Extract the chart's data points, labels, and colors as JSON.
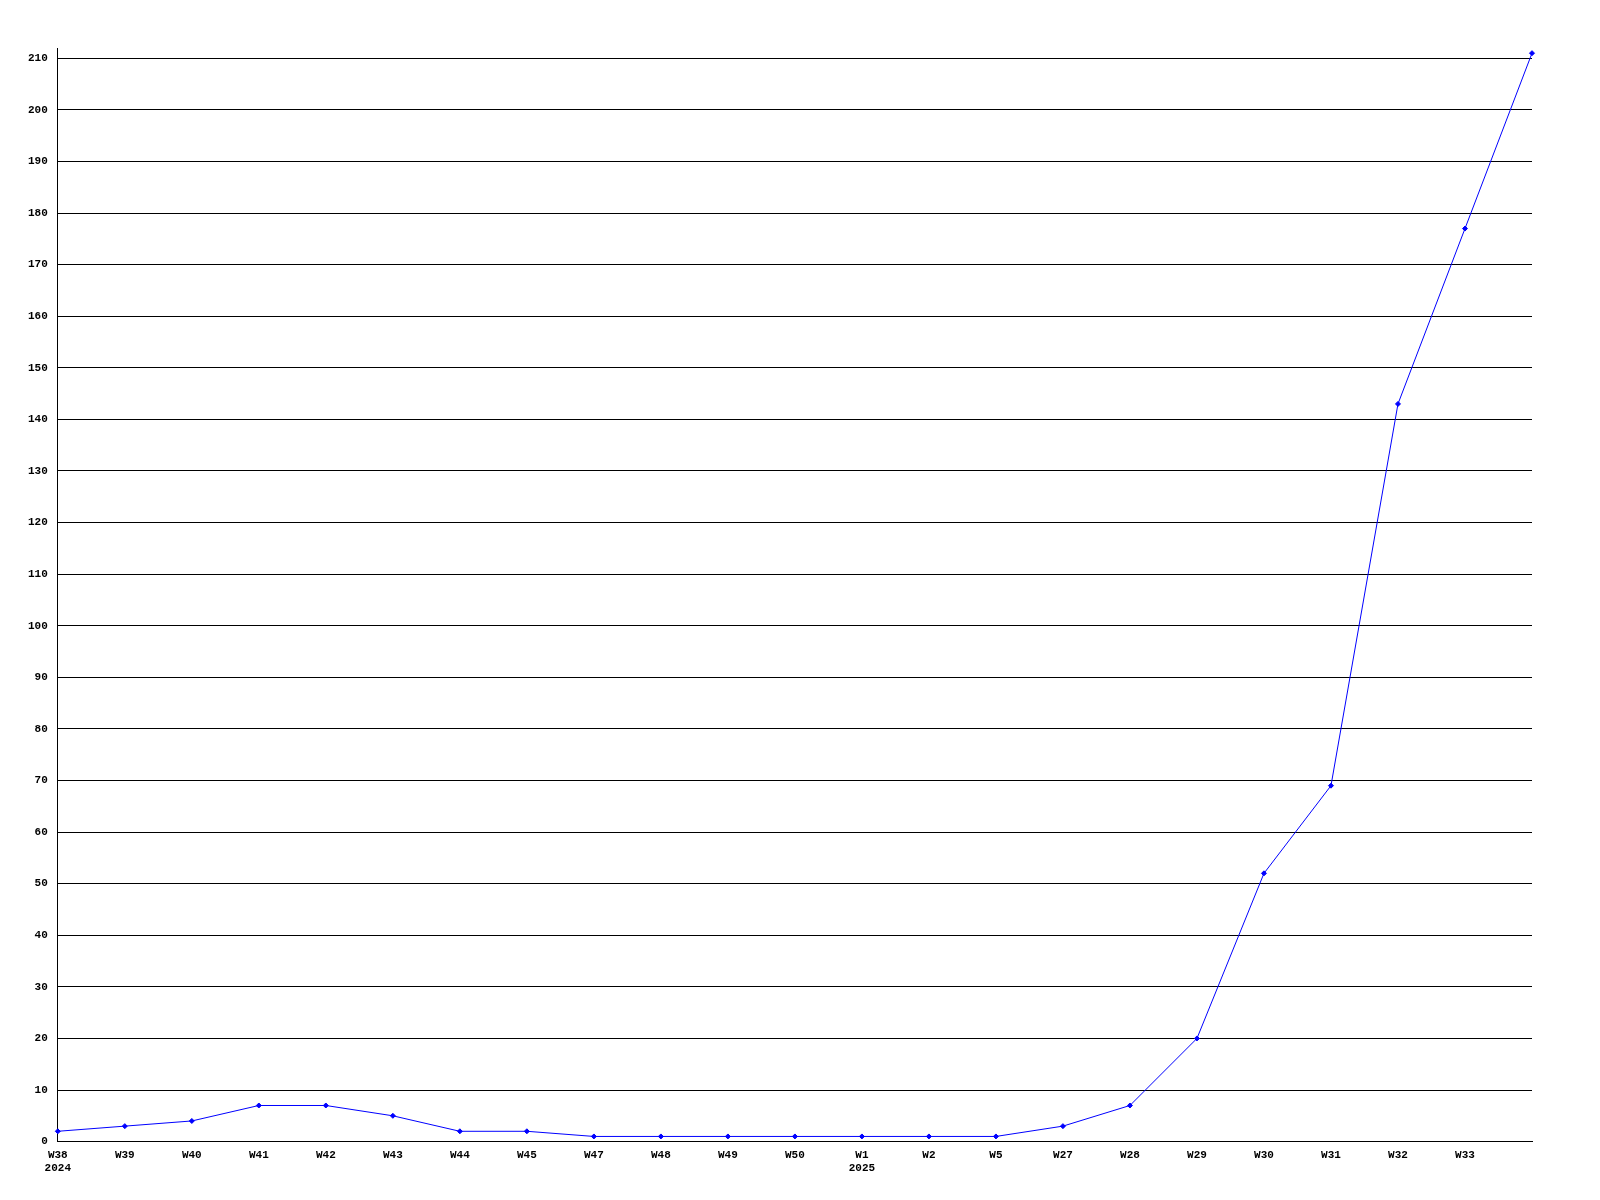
{
  "chart_data": {
    "type": "line",
    "categories": [
      "W38\n2024",
      "W39",
      "W40",
      "W41",
      "W42",
      "W43",
      "W44",
      "W45",
      "W47",
      "W48",
      "W49",
      "W50",
      "W1\n2025",
      "W2",
      "W5",
      "W27",
      "W28",
      "W29",
      "W30",
      "W31",
      "W32",
      "W33",
      null
    ],
    "series": [
      {
        "color": "#0000ff",
        "values": [
          2,
          3,
          4,
          7,
          7,
          5,
          2,
          2,
          1,
          1,
          1,
          1,
          1,
          1,
          1,
          3,
          7,
          20,
          52,
          69,
          143,
          177,
          211
        ]
      }
    ],
    "ylim": [
      0,
      212
    ],
    "yticks": [
      0,
      10,
      20,
      30,
      40,
      50,
      60,
      70,
      80,
      90,
      100,
      110,
      120,
      130,
      140,
      150,
      160,
      170,
      180,
      190,
      200,
      210
    ],
    "grid": "y",
    "legend": false,
    "marker": "diamond",
    "line_style": "solid"
  }
}
